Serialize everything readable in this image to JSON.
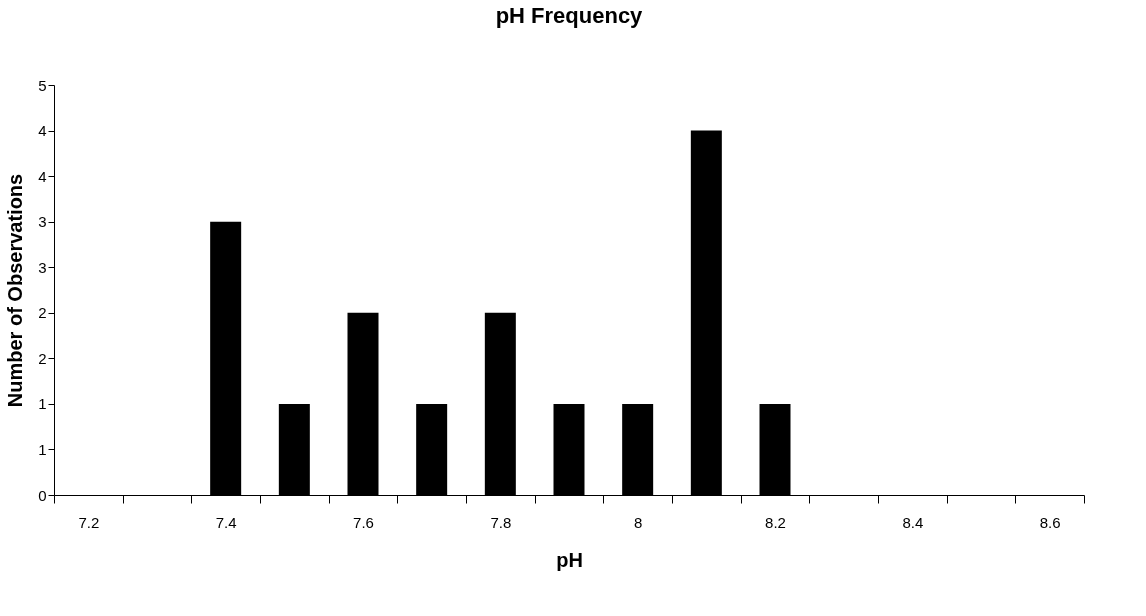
{
  "chart_data": {
    "type": "bar",
    "title": "pH Frequency",
    "xlabel": "pH",
    "ylabel": "Number of Observations",
    "categories": [
      "7.2",
      null,
      "7.4",
      null,
      "7.6",
      null,
      "7.8",
      null,
      "8",
      null,
      "8.2",
      null,
      "8.4",
      null,
      "8.6"
    ],
    "values": [
      0,
      0,
      3,
      1,
      2,
      1,
      2,
      1,
      1,
      4,
      1,
      0,
      0,
      0,
      0
    ],
    "color": "#000000",
    "ylim": [
      0,
      4.5
    ],
    "yticks": [
      0,
      {
        "value": 0.5,
        "label": "1"
      },
      1,
      {
        "value": 1.5,
        "label": "2"
      },
      2,
      {
        "value": 2.5,
        "label": "3"
      },
      3,
      {
        "value": 3.5,
        "label": "4"
      },
      4,
      {
        "value": 4.5,
        "label": "5"
      }
    ],
    "grid": false
  }
}
